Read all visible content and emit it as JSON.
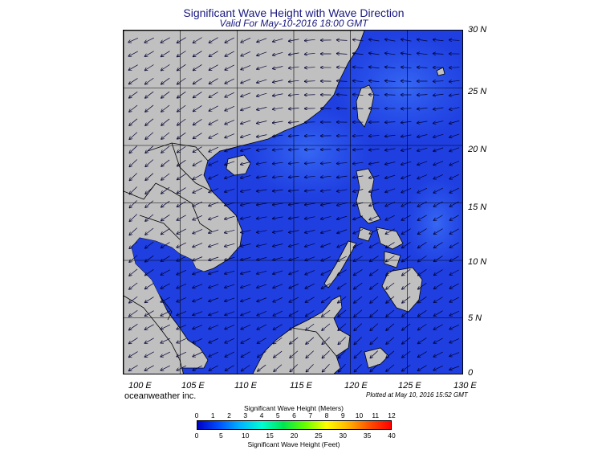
{
  "header": {
    "title": "Significant Wave Height with Wave Direction",
    "subtitle": "Valid For May-10-2016 18:00 GMT"
  },
  "map": {
    "lat_labels": [
      "30 N",
      "25 N",
      "20 N",
      "15 N",
      "10 N",
      "5 N",
      "0"
    ],
    "lon_labels": [
      "100 E",
      "105 E",
      "110 E",
      "115 E",
      "120 E",
      "125 E",
      "130 E"
    ],
    "colors": {
      "ocean": "#1f3fe0",
      "ocean_light": "#2d5cf2",
      "ocean_dark": "#1634d2",
      "land": "#c0c0c0",
      "arrows": "#000033"
    }
  },
  "footer": {
    "brand": "oceanweather inc.",
    "plotted": "Plotted at May 10, 2016 15:52 GMT"
  },
  "colorbar": {
    "meters_title": "Significant Wave Height (Meters)",
    "feet_title": "Significant Wave Height (Feet)",
    "meters_ticks": [
      "0",
      "1",
      "2",
      "3",
      "4",
      "5",
      "6",
      "7",
      "8",
      "9",
      "10",
      "11",
      "12"
    ],
    "feet_ticks": [
      "0",
      "5",
      "10",
      "15",
      "20",
      "25",
      "30",
      "35",
      "40"
    ],
    "gradient_colors": [
      "#0000c8",
      "#0050ff",
      "#00b4ff",
      "#00ffd2",
      "#00e650",
      "#64ff00",
      "#ffff00",
      "#ffb400",
      "#ff5000",
      "#ff0000"
    ]
  }
}
